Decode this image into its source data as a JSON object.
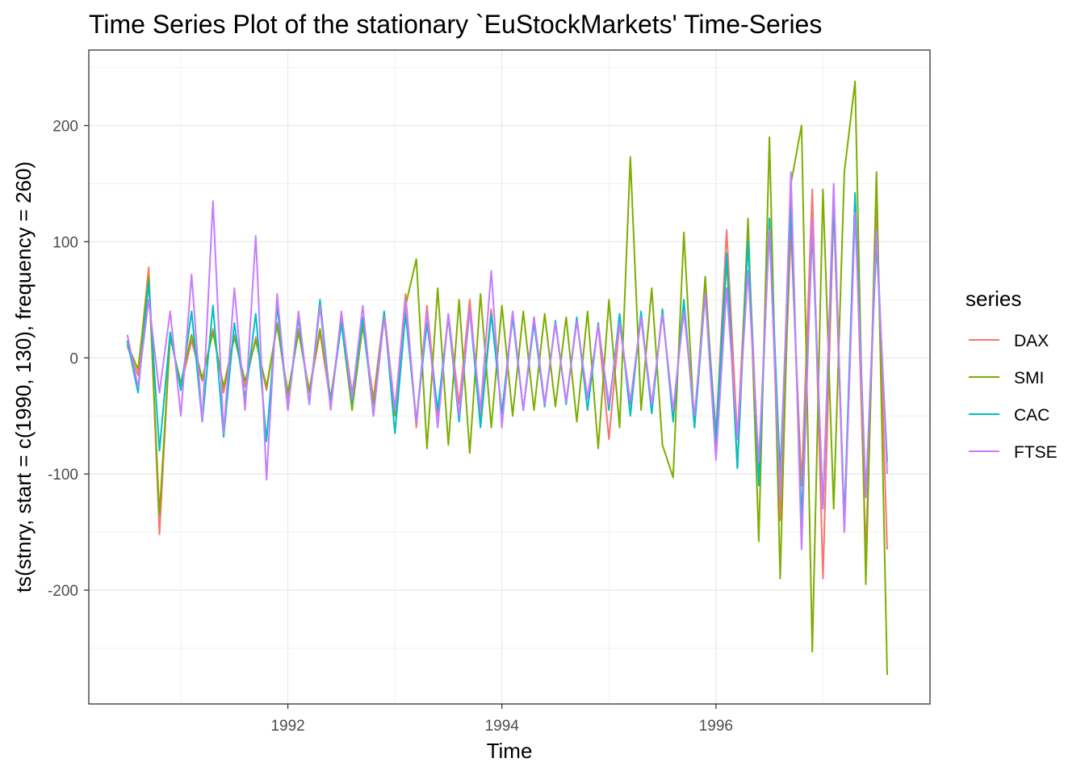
{
  "chart_data": {
    "type": "line",
    "title": "Time Series Plot of the stationary `EuStockMarkets' Time-Series",
    "xlabel": "Time",
    "ylabel": "ts(stnry, start = c(1990, 130), frequency = 260)",
    "xlim": [
      1990.14,
      1998.0
    ],
    "ylim": [
      -298,
      265
    ],
    "x_ticks": [
      1992,
      1994,
      1996
    ],
    "x_tick_labels": [
      "1992",
      "1994",
      "1996"
    ],
    "y_ticks": [
      200,
      100,
      0,
      -100,
      -200
    ],
    "y_tick_labels": [
      "200",
      "100",
      "0",
      "-100",
      "-200"
    ],
    "grid": true,
    "legend": {
      "title": "series",
      "placement": "right"
    },
    "x_start": 1990.5,
    "x_step": 0.1,
    "series": [
      {
        "name": "DAX",
        "color": "#F8766D",
        "values": [
          10,
          -15,
          78,
          -152,
          20,
          -25,
          15,
          -20,
          25,
          -30,
          20,
          -25,
          18,
          -28,
          30,
          -35,
          25,
          -30,
          22,
          -40,
          35,
          -30,
          28,
          -35,
          40,
          -45,
          55,
          -60,
          45,
          -50,
          38,
          -40,
          50,
          -55,
          42,
          -48,
          40,
          -45,
          35,
          -40,
          30,
          -38,
          32,
          -35,
          28,
          -70,
          30,
          -40,
          35,
          -45,
          40,
          -50,
          48,
          -55,
          60,
          -65,
          110,
          -70,
          105,
          -100,
          120,
          -140,
          110,
          -110,
          145,
          -190,
          130,
          -150,
          140,
          -170,
          130,
          -165
        ]
      },
      {
        "name": "SMI",
        "color": "#7CAE00",
        "values": [
          12,
          -10,
          70,
          -135,
          18,
          -22,
          20,
          -18,
          22,
          -25,
          18,
          -20,
          15,
          -25,
          28,
          -30,
          22,
          -28,
          25,
          -35,
          30,
          -45,
          28,
          -40,
          35,
          -50,
          45,
          85,
          -78,
          60,
          -75,
          50,
          -82,
          55,
          -60,
          45,
          -50,
          40,
          -45,
          38,
          -42,
          35,
          -55,
          40,
          -78,
          50,
          -60,
          173,
          -45,
          60,
          -75,
          -103,
          108,
          -60,
          70,
          -80,
          85,
          -95,
          120,
          -158,
          190,
          -190,
          150,
          200,
          -253,
          145,
          -130,
          160,
          238,
          -195,
          160,
          -273
        ]
      },
      {
        "name": "CAC",
        "color": "#00BFC4",
        "values": [
          15,
          -30,
          65,
          -80,
          22,
          -28,
          40,
          -55,
          45,
          -68,
          30,
          -35,
          38,
          -72,
          45,
          -45,
          35,
          -40,
          50,
          -40,
          30,
          -38,
          35,
          -50,
          40,
          -65,
          38,
          -55,
          30,
          -45,
          35,
          -55,
          42,
          -60,
          38,
          -48,
          35,
          -45,
          30,
          -42,
          32,
          -40,
          35,
          -45,
          30,
          -45,
          38,
          -50,
          40,
          -48,
          42,
          -55,
          50,
          -60,
          55,
          -70,
          90,
          -95,
          100,
          -110,
          120,
          -100,
          130,
          -140,
          110,
          -130,
          135,
          -140,
          142,
          -120,
          100,
          -90
        ]
      },
      {
        "name": "FTSE",
        "color": "#C77CFF",
        "values": [
          20,
          -25,
          50,
          -30,
          40,
          -50,
          72,
          -55,
          135,
          -65,
          60,
          -45,
          105,
          -105,
          55,
          -45,
          40,
          -40,
          45,
          -45,
          40,
          -35,
          45,
          -50,
          35,
          -45,
          50,
          -55,
          40,
          -60,
          38,
          -50,
          42,
          -45,
          75,
          -60,
          40,
          -45,
          35,
          -40,
          30,
          -38,
          32,
          -35,
          28,
          -40,
          30,
          -38,
          35,
          -40,
          38,
          -45,
          40,
          -50,
          55,
          -88,
          60,
          -70,
          75,
          -90,
          110,
          -120,
          160,
          -165,
          120,
          -130,
          150,
          -150,
          125,
          -120,
          110,
          -100
        ]
      }
    ]
  }
}
